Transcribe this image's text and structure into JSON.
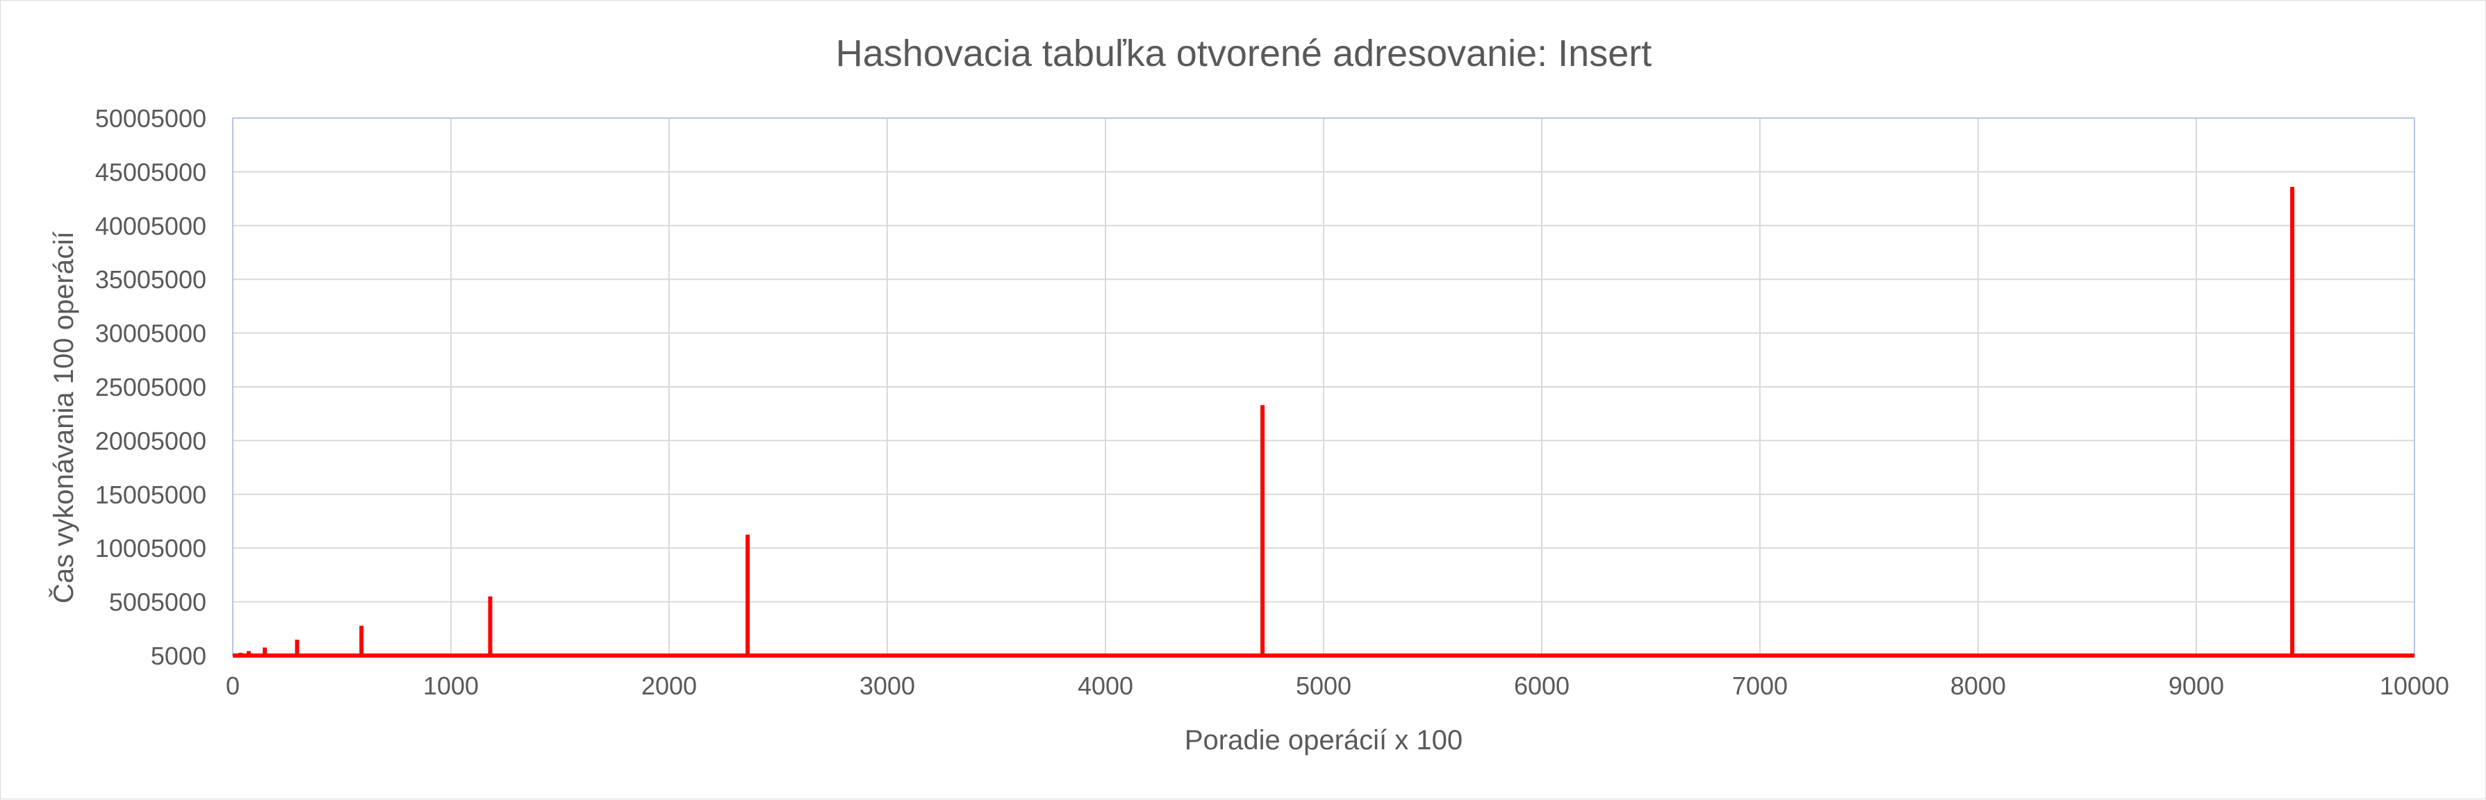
{
  "chart_data": {
    "type": "line",
    "title": "Hashovacia tabuľka otvorené adresovanie: Insert",
    "xlabel": "Poradie operácií x 100",
    "ylabel": "Čas vykonávania 100 operácií",
    "xlim": [
      0,
      10000
    ],
    "ylim": [
      5000,
      50005000
    ],
    "x_ticks": [
      0,
      1000,
      2000,
      3000,
      4000,
      5000,
      6000,
      7000,
      8000,
      9000,
      10000
    ],
    "y_ticks": [
      5000,
      5005000,
      10005000,
      15005000,
      20005000,
      25005000,
      30005000,
      35005000,
      40005000,
      45005000,
      50005000
    ],
    "x_tick_labels": [
      "0",
      "1000",
      "2000",
      "3000",
      "4000",
      "5000",
      "6000",
      "7000",
      "8000",
      "9000",
      "10000"
    ],
    "y_tick_labels": [
      "5000",
      "5005000",
      "10005000",
      "15005000",
      "20005000",
      "25005000",
      "30005000",
      "35005000",
      "40005000",
      "45005000",
      "50005000"
    ],
    "grid": true,
    "series": [
      {
        "color": "#ff0000",
        "baseline": 5000,
        "spikes": [
          {
            "x": 18,
            "y": 150000
          },
          {
            "x": 36,
            "y": 260000
          },
          {
            "x": 73,
            "y": 420000
          },
          {
            "x": 147,
            "y": 750000
          },
          {
            "x": 295,
            "y": 1480000
          },
          {
            "x": 590,
            "y": 2780000
          },
          {
            "x": 1180,
            "y": 5500000
          },
          {
            "x": 2360,
            "y": 11250000
          },
          {
            "x": 4720,
            "y": 23300000
          },
          {
            "x": 9440,
            "y": 43600000
          }
        ]
      }
    ]
  },
  "colors": {
    "line": "#ff0000",
    "grid": "#d9d9d9",
    "plot_border": "#b4c7e7",
    "text": "#595959"
  }
}
